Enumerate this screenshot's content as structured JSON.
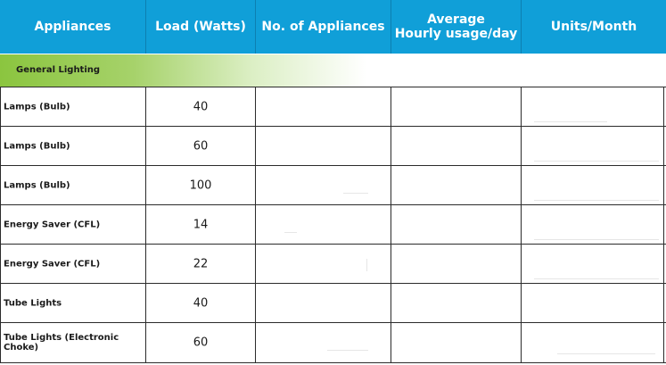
{
  "headers": [
    "Appliances",
    "Load (Watts)",
    "No. of Appliances",
    "Average\nHourly usage/day",
    "Units/Month"
  ],
  "section_label": "General Lighting",
  "rows": [
    {
      "name": "Lamps (Bulb)",
      "load": "40"
    },
    {
      "name": "Lamps (Bulb)",
      "load": "60"
    },
    {
      "name": "Lamps (Bulb)",
      "load": "100"
    },
    {
      "name": "Energy Saver (CFL)",
      "load": "14"
    },
    {
      "name": "Energy Saver (CFL)",
      "load": "22"
    },
    {
      "name": "Tube Lights",
      "load": "40"
    },
    {
      "name": "Tube Lights (Electronic Choke)",
      "load": "60"
    }
  ],
  "colors": {
    "header_bg": "#109fd8",
    "section_green": "#8bc53f"
  }
}
